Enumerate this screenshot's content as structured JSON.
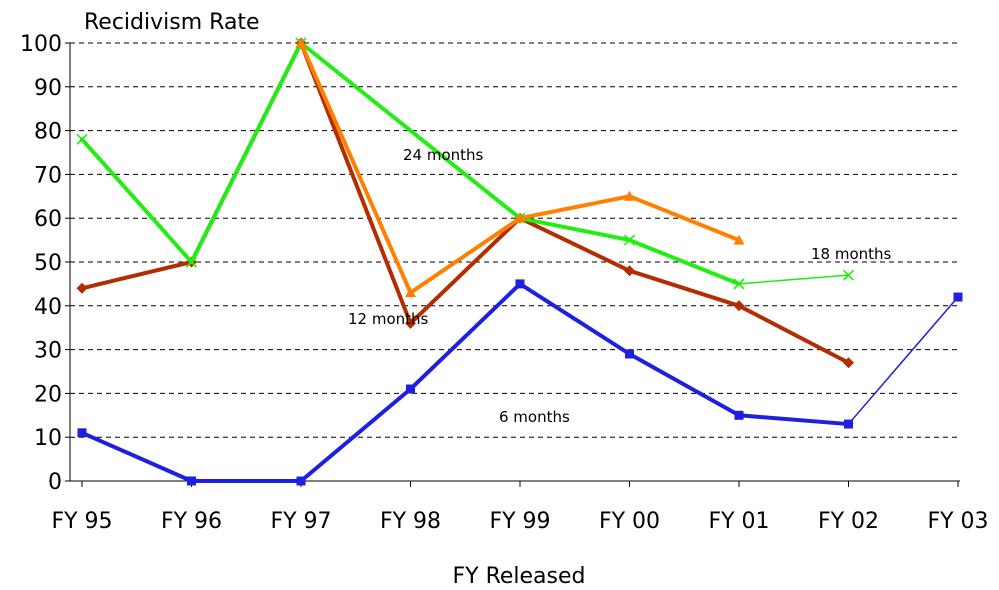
{
  "chart_data": {
    "type": "line",
    "ylabel": "Recidivism Rate",
    "xlabel": "FY Released",
    "categories": [
      "FY 95",
      "FY 96",
      "FY 97",
      "FY 98",
      "FY 99",
      "FY 00",
      "FY 01",
      "FY 02",
      "FY 03"
    ],
    "ylim": [
      0,
      100
    ],
    "yticks": [
      0,
      10,
      20,
      30,
      40,
      50,
      60,
      70,
      80,
      90,
      100
    ],
    "grid": "horizontal dashed",
    "series": [
      {
        "name": "6 months",
        "color": "#1f1fdf",
        "marker": "square",
        "values": [
          11,
          0,
          0,
          21,
          45,
          29,
          15,
          13,
          42
        ],
        "thin_from_index": 7
      },
      {
        "name": "12 months",
        "color": "#b32d00",
        "marker": "diamond",
        "values": [
          44,
          50,
          100,
          36,
          60,
          48,
          40,
          27,
          null
        ]
      },
      {
        "name": "18 months",
        "color": "#22ee11",
        "marker": "x",
        "values": [
          78,
          50,
          100,
          null,
          60,
          55,
          45,
          47,
          null
        ],
        "thin_from_index": 6
      },
      {
        "name": "24 months",
        "color": "#ff8000",
        "marker": "triangle",
        "values": [
          null,
          null,
          100,
          43,
          60,
          65,
          55,
          null,
          null
        ]
      }
    ],
    "annotations": [
      {
        "text": "24 months"
      },
      {
        "text": "18 months"
      },
      {
        "text": "12 months"
      },
      {
        "text": "6 months"
      }
    ]
  }
}
